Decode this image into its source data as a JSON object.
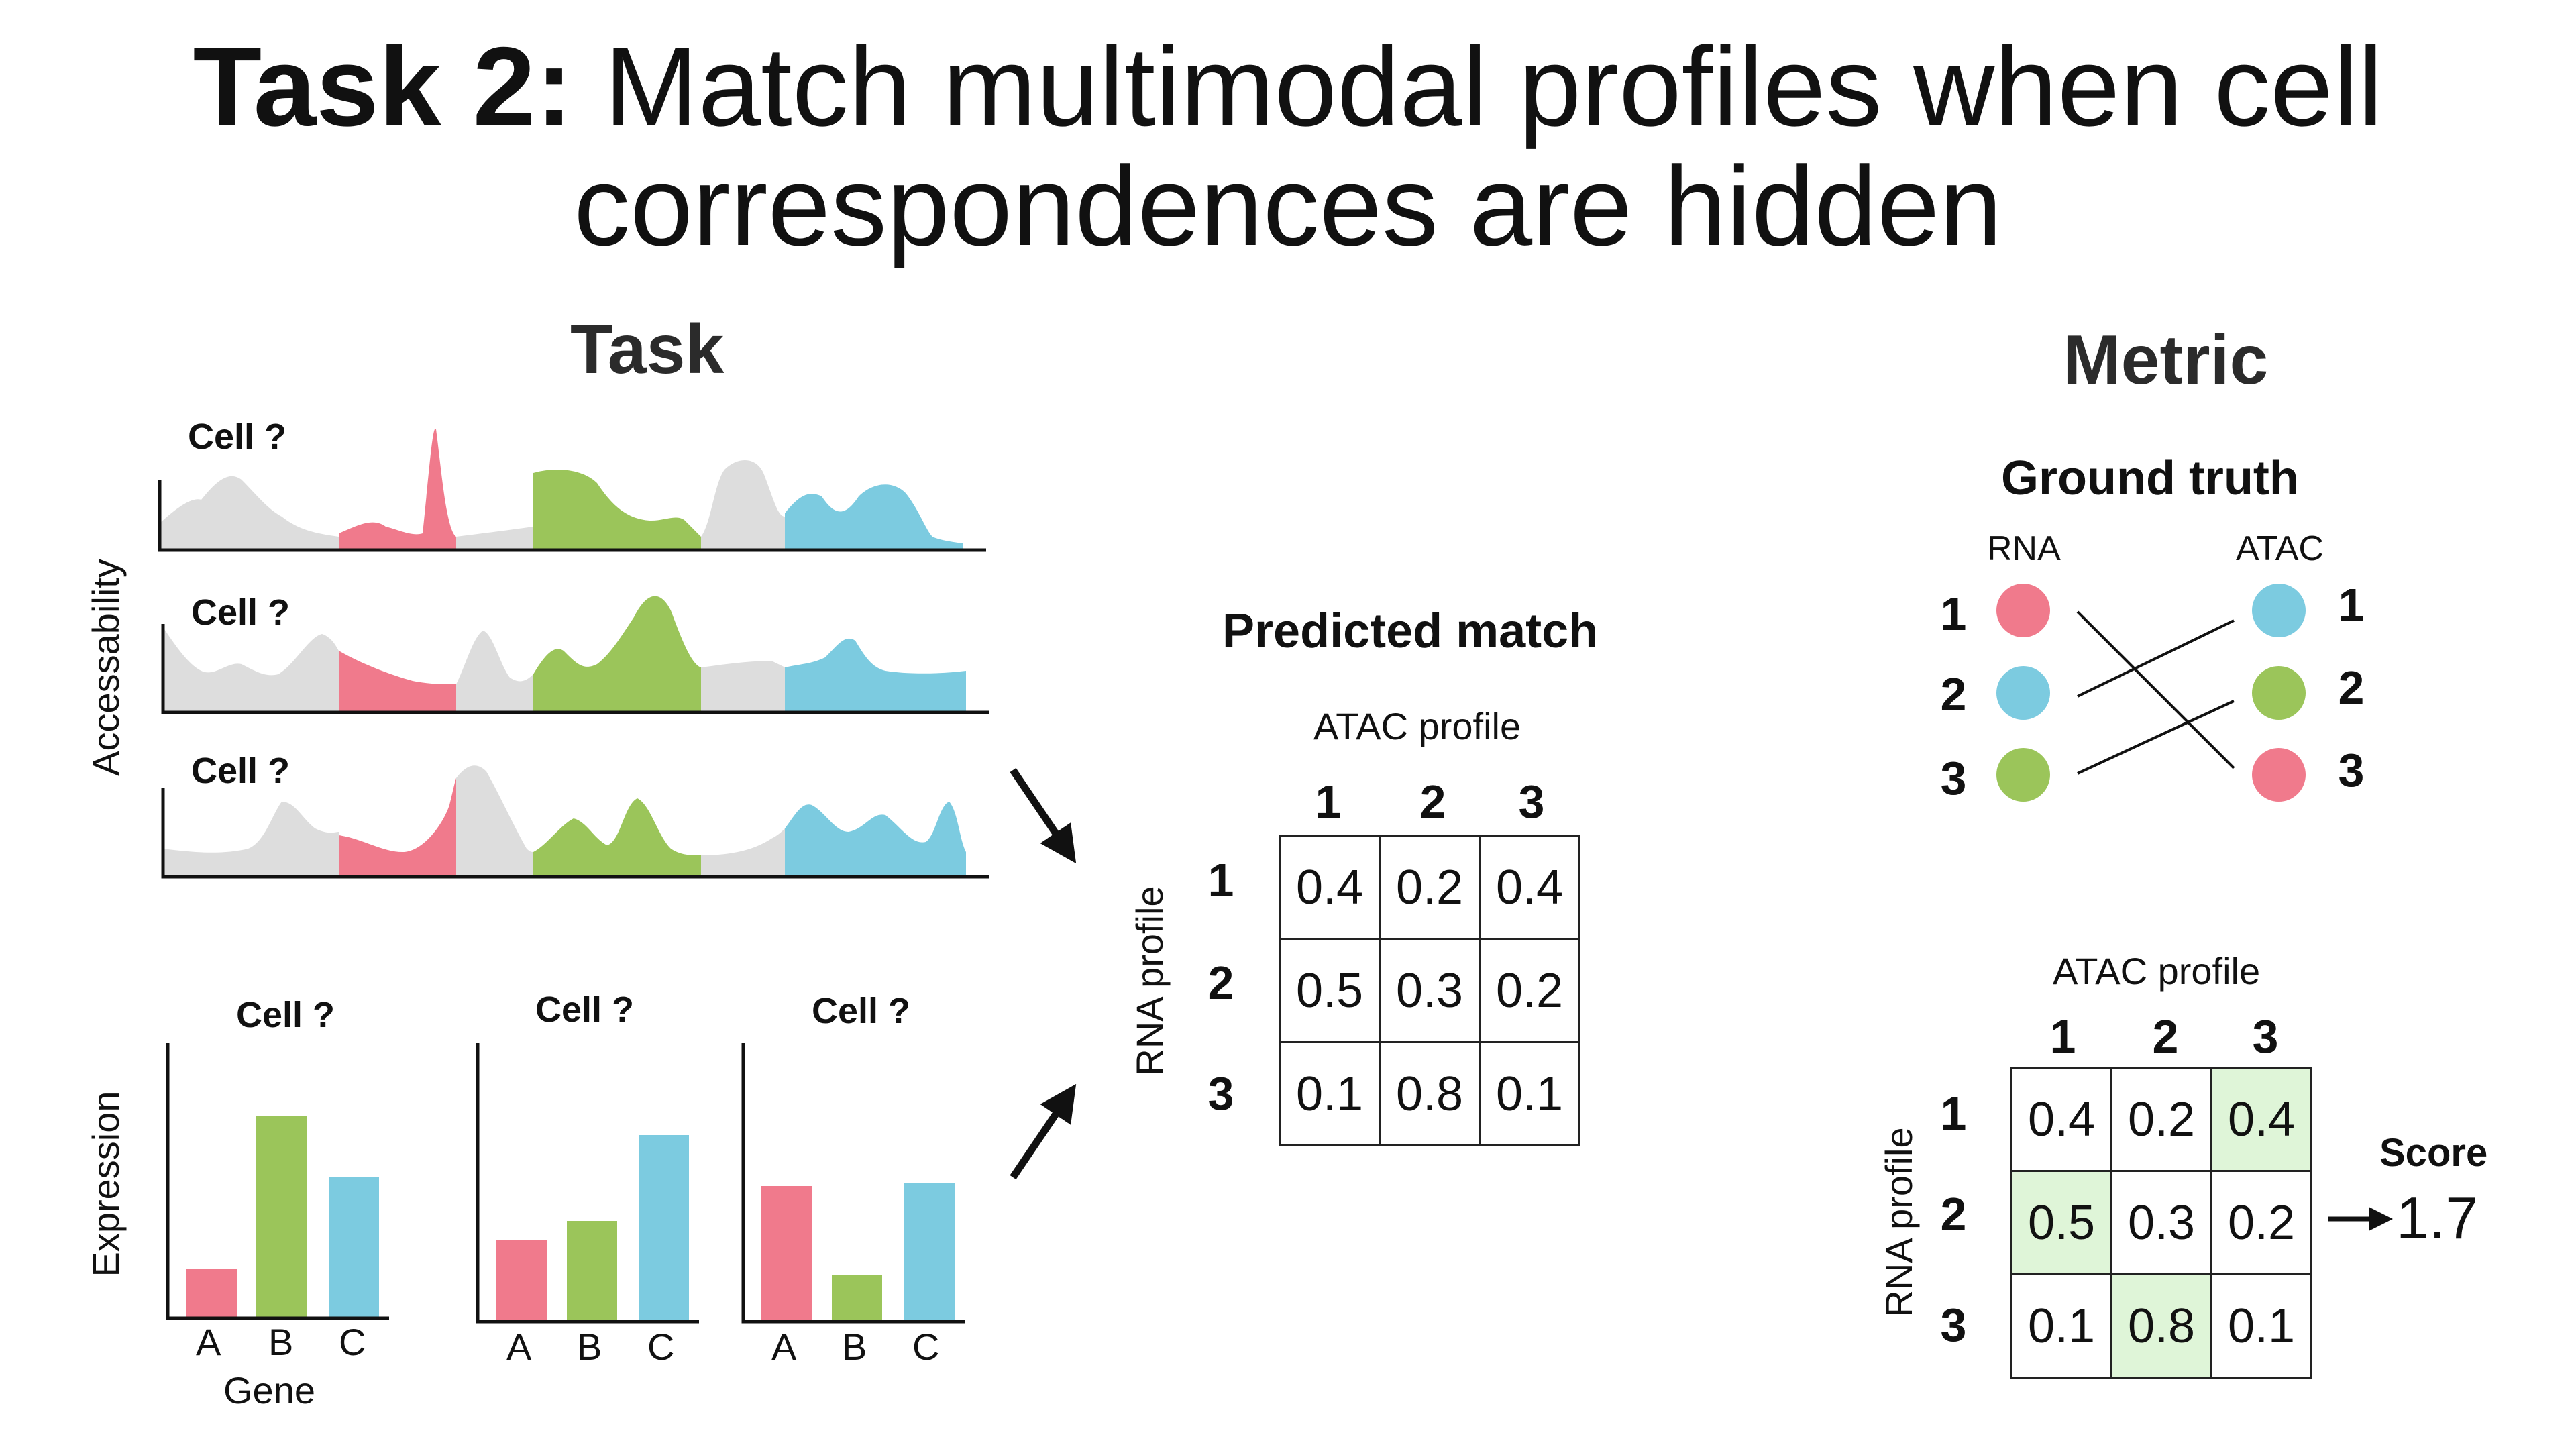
{
  "title": {
    "bold": "Task 2:",
    "line1": " Match multimodal profiles when cell",
    "line2": "correspondences are hidden"
  },
  "task": {
    "heading": "Task",
    "accessibility_label": "Accessability",
    "expression_label": "Expression",
    "atac_cells": [
      "Cell ?",
      "Cell ?",
      "Cell ?"
    ],
    "rna_cells": [
      "Cell ?",
      "Cell ?",
      "Cell ?"
    ],
    "genes": [
      "A",
      "B",
      "C"
    ],
    "gene_label": "Gene",
    "rna_bars": [
      [
        0.18,
        0.75,
        0.52
      ],
      [
        0.3,
        0.37,
        0.69
      ],
      [
        0.5,
        0.17,
        0.51
      ]
    ]
  },
  "predicted": {
    "heading": "Predicted match",
    "col_header": "ATAC profile",
    "row_header": "RNA profile",
    "cols": [
      "1",
      "2",
      "3"
    ],
    "rows": [
      "1",
      "2",
      "3"
    ],
    "cells": [
      [
        "0.4",
        "0.2",
        "0.4"
      ],
      [
        "0.5",
        "0.3",
        "0.2"
      ],
      [
        "0.1",
        "0.8",
        "0.1"
      ]
    ]
  },
  "metric": {
    "heading": "Metric",
    "gt_heading": "Ground truth",
    "rna_label": "RNA",
    "atac_label": "ATAC",
    "rna_nums": [
      "1",
      "2",
      "3"
    ],
    "atac_nums": [
      "1",
      "2",
      "3"
    ],
    "rna_colors": [
      "#f07a8c",
      "#7ccbe0",
      "#9bc55a"
    ],
    "atac_colors": [
      "#7ccbe0",
      "#9bc55a",
      "#f07a8c"
    ],
    "col_header": "ATAC profile",
    "row_header": "RNA profile",
    "cols": [
      "1",
      "2",
      "3"
    ],
    "rows": [
      "1",
      "2",
      "3"
    ],
    "cells": [
      [
        "0.4",
        "0.2",
        "0.4"
      ],
      [
        "0.5",
        "0.3",
        "0.2"
      ],
      [
        "0.1",
        "0.8",
        "0.1"
      ]
    ],
    "score_label": "Score",
    "score_value": "1.7"
  },
  "colors": {
    "gray": "#dddddd",
    "pink": "#f07a8c",
    "green": "#9bc55a",
    "blue": "#7ccbe0",
    "highlight": "#dff5d8"
  }
}
